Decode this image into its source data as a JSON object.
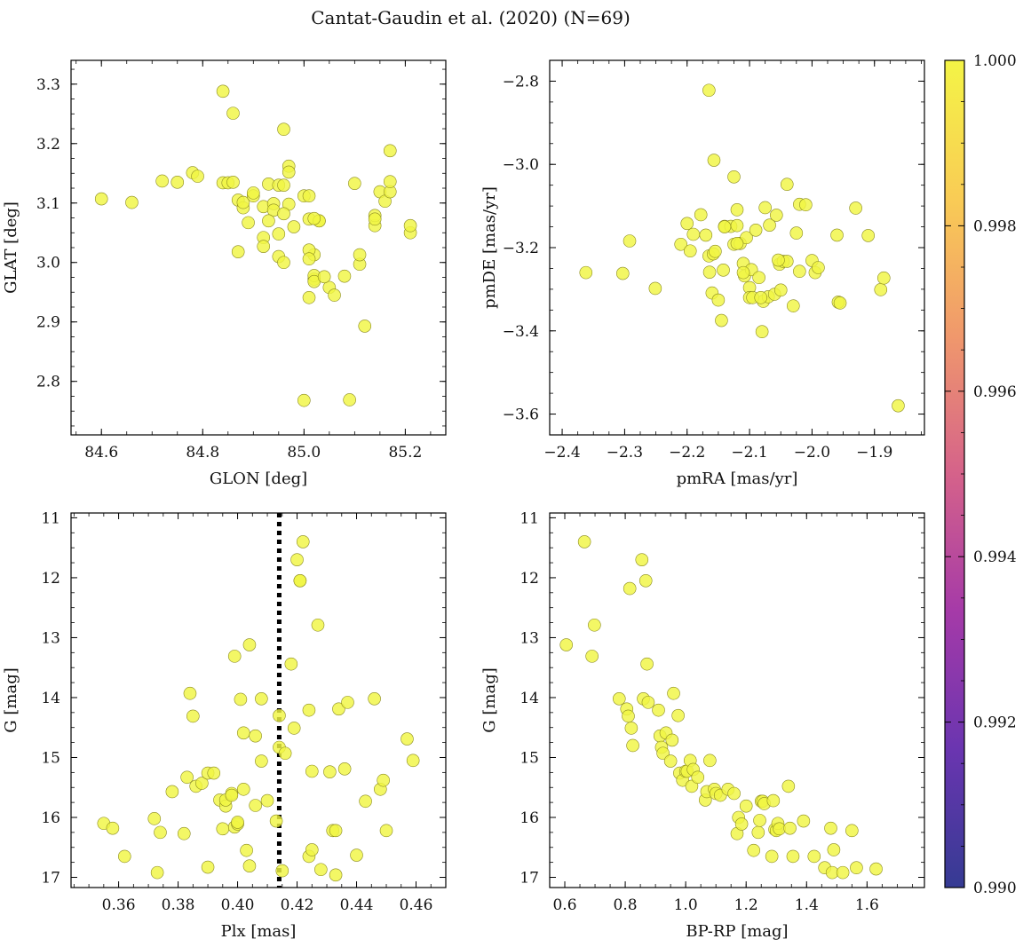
{
  "figure": {
    "title": "Cantat-Gaudin et al. (2020) (N=69)",
    "marker_color": "#f0f543",
    "marker_edge": "#8a8a20"
  },
  "colorbar": {
    "min": 0.99,
    "max": 1.0,
    "ticks": [
      "0.990",
      "0.992",
      "0.994",
      "0.996",
      "0.998",
      "1.000"
    ],
    "colormap": "plasma",
    "stops": [
      "#353b93",
      "#6a35b0",
      "#a53aa8",
      "#d5628a",
      "#f0986c",
      "#f9cc55",
      "#f4f446"
    ]
  },
  "chart_data": [
    {
      "type": "scatter",
      "title": "",
      "xlabel": "GLON [deg]",
      "ylabel": "GLAT [deg]",
      "xlim": [
        84.54,
        85.28
      ],
      "ylim": [
        2.71,
        3.34
      ],
      "xticks": [
        84.6,
        84.8,
        85.0,
        85.2
      ],
      "xticklabels": [
        "84.6",
        "84.8",
        "85.0",
        "85.2"
      ],
      "yticks": [
        2.8,
        2.9,
        3.0,
        3.1,
        3.2,
        3.3
      ],
      "yticklabels": [
        "2.8",
        "2.9",
        "3.0",
        "3.1",
        "3.2",
        "3.3"
      ],
      "x": [
        84.6,
        84.66,
        84.72,
        84.75,
        84.78,
        84.79,
        84.84,
        84.85,
        84.86,
        84.87,
        84.88,
        84.88,
        84.9,
        84.9,
        84.92,
        84.93,
        84.94,
        84.94,
        84.95,
        84.95,
        84.96,
        84.96,
        84.97,
        84.97,
        84.97,
        84.98,
        85.0,
        85.01,
        85.01,
        85.02,
        85.02,
        85.03,
        85.03,
        85.05,
        85.06,
        85.08,
        85.1,
        85.11,
        85.12,
        85.14,
        85.14,
        85.15,
        85.16,
        85.17,
        85.17,
        85.17,
        85.21,
        85.21,
        84.84,
        84.86,
        84.87,
        84.89,
        84.92,
        84.92,
        84.93,
        84.95,
        85.01,
        85.02,
        85.01,
        85.02,
        85.04,
        85.0,
        85.09,
        85.11,
        85.14,
        84.96,
        84.96,
        85.01,
        85.02
      ],
      "y": [
        3.107,
        3.101,
        3.137,
        3.135,
        3.151,
        3.145,
        3.134,
        3.134,
        3.135,
        3.105,
        3.092,
        3.101,
        3.112,
        3.117,
        3.094,
        3.132,
        3.099,
        3.088,
        3.13,
        3.01,
        3.224,
        3.13,
        3.162,
        3.152,
        3.098,
        3.06,
        3.112,
        3.112,
        3.073,
        2.972,
        3.013,
        3.07,
        3.07,
        2.958,
        2.945,
        2.977,
        3.133,
        2.997,
        2.893,
        3.062,
        3.079,
        3.119,
        3.103,
        3.119,
        3.188,
        3.136,
        3.05,
        3.062,
        3.288,
        3.251,
        3.018,
        3.067,
        3.042,
        3.027,
        3.07,
        3.048,
        3.021,
        2.978,
        2.941,
        2.968,
        2.976,
        2.768,
        2.769,
        3.013,
        3.073,
        3.0,
        3.082,
        3.006,
        3.074
      ],
      "marker_colors": [
        "yellow"
      ]
    },
    {
      "type": "scatter",
      "title": "",
      "xlabel": "pmRA [mas/yr]",
      "ylabel": "pmDE [mas/yr]",
      "xlim": [
        -2.42,
        -1.82
      ],
      "ylim": [
        -3.65,
        -2.75
      ],
      "xticks": [
        -2.4,
        -2.3,
        -2.2,
        -2.1,
        -2.0,
        -1.9
      ],
      "xticklabels": [
        "−2.4",
        "−2.3",
        "−2.2",
        "−2.1",
        "−2.0",
        "−1.9"
      ],
      "yticks": [
        -3.6,
        -3.4,
        -3.2,
        -3.0,
        -2.8
      ],
      "yticklabels": [
        "−3.6",
        "−3.4",
        "−3.2",
        "−3.0",
        "−2.8"
      ],
      "x": [
        -2.165,
        -2.157,
        -2.125,
        -2.04,
        -2.02,
        -2.362,
        -2.303,
        -2.292,
        -2.251,
        -2.21,
        -2.2,
        -2.195,
        -2.19,
        -2.178,
        -2.17,
        -2.165,
        -2.164,
        -2.16,
        -2.158,
        -2.155,
        -2.15,
        -2.145,
        -2.142,
        -2.14,
        -2.13,
        -2.125,
        -2.12,
        -2.12,
        -2.115,
        -2.11,
        -2.108,
        -2.105,
        -2.1,
        -2.1,
        -2.097,
        -2.09,
        -2.085,
        -2.08,
        -2.078,
        -2.075,
        -2.07,
        -2.068,
        -2.06,
        -2.057,
        -2.052,
        -2.05,
        -2.046,
        -2.04,
        -2.03,
        -2.025,
        -2.02,
        -2.01,
        -2.0,
        -1.995,
        -1.99,
        -1.96,
        -1.958,
        -1.955,
        -1.93,
        -1.91,
        -1.89,
        -1.885,
        -1.862,
        -2.12,
        -2.11,
        -2.095,
        -2.14,
        -2.082,
        -2.054
      ],
      "y": [
        -2.822,
        -2.99,
        -3.03,
        -3.048,
        -3.096,
        -3.26,
        -3.262,
        -3.184,
        -3.298,
        -3.192,
        -3.142,
        -3.208,
        -3.168,
        -3.121,
        -3.17,
        -3.22,
        -3.259,
        -3.309,
        -3.215,
        -3.209,
        -3.326,
        -3.375,
        -3.254,
        -3.149,
        -3.149,
        -3.192,
        -3.147,
        -3.109,
        -3.19,
        -3.238,
        -3.268,
        -3.176,
        -3.296,
        -3.32,
        -3.253,
        -3.158,
        -3.272,
        -3.402,
        -3.329,
        -3.104,
        -3.318,
        -3.146,
        -3.312,
        -3.122,
        -3.24,
        -3.302,
        -3.233,
        -3.233,
        -3.34,
        -3.165,
        -3.257,
        -3.097,
        -3.231,
        -3.26,
        -3.248,
        -3.17,
        -3.331,
        -3.333,
        -3.105,
        -3.171,
        -3.301,
        -3.273,
        -3.58,
        -3.19,
        -3.26,
        -3.32,
        -3.15,
        -3.32,
        -3.23
      ]
    },
    {
      "type": "scatter",
      "title": "",
      "xlabel": "Plx [mas]",
      "ylabel": "G [mag]",
      "xlim": [
        0.344,
        0.47
      ],
      "ylim": [
        17.17,
        10.92
      ],
      "y_inverted": true,
      "xticks": [
        0.36,
        0.38,
        0.4,
        0.42,
        0.44,
        0.46
      ],
      "xticklabels": [
        "0.36",
        "0.38",
        "0.40",
        "0.42",
        "0.44",
        "0.46"
      ],
      "yticks": [
        11,
        12,
        13,
        14,
        15,
        16,
        17
      ],
      "yticklabels": [
        "11",
        "12",
        "13",
        "14",
        "15",
        "16",
        "17"
      ],
      "reference_line": {
        "x": 0.414,
        "style": "dotted",
        "color": "#000000"
      },
      "x": [
        0.355,
        0.358,
        0.362,
        0.372,
        0.373,
        0.374,
        0.378,
        0.382,
        0.383,
        0.384,
        0.385,
        0.386,
        0.388,
        0.39,
        0.39,
        0.392,
        0.394,
        0.395,
        0.396,
        0.396,
        0.398,
        0.398,
        0.399,
        0.399,
        0.4,
        0.4,
        0.401,
        0.402,
        0.402,
        0.403,
        0.404,
        0.404,
        0.406,
        0.406,
        0.408,
        0.408,
        0.41,
        0.413,
        0.414,
        0.414,
        0.415,
        0.416,
        0.418,
        0.419,
        0.42,
        0.421,
        0.421,
        0.422,
        0.424,
        0.424,
        0.425,
        0.425,
        0.427,
        0.428,
        0.431,
        0.432,
        0.433,
        0.433,
        0.434,
        0.436,
        0.437,
        0.44,
        0.443,
        0.446,
        0.448,
        0.449,
        0.45,
        0.457,
        0.459
      ],
      "y": [
        16.1,
        16.18,
        16.65,
        16.02,
        16.92,
        16.25,
        15.57,
        16.27,
        15.33,
        13.93,
        14.31,
        15.48,
        15.43,
        16.83,
        15.26,
        15.26,
        15.71,
        16.19,
        15.81,
        15.71,
        15.6,
        15.63,
        16.16,
        13.31,
        16.11,
        16.08,
        14.03,
        15.53,
        14.59,
        16.55,
        13.12,
        16.81,
        15.8,
        14.64,
        15.06,
        14.02,
        15.72,
        16.06,
        14.3,
        14.83,
        16.89,
        14.93,
        13.44,
        14.51,
        11.7,
        12.05,
        12.05,
        11.4,
        16.65,
        14.21,
        15.23,
        16.54,
        12.79,
        16.87,
        15.24,
        16.22,
        16.22,
        16.96,
        14.19,
        15.19,
        14.08,
        16.63,
        15.73,
        14.02,
        15.53,
        15.38,
        16.22,
        14.69,
        15.05
      ]
    },
    {
      "type": "scatter",
      "title": "",
      "xlabel": "BP-RP [mag]",
      "ylabel": "G [mag]",
      "xlim": [
        0.55,
        1.79
      ],
      "ylim": [
        17.17,
        10.92
      ],
      "y_inverted": true,
      "xticks": [
        0.6,
        0.8,
        1.0,
        1.2,
        1.4,
        1.6
      ],
      "xticklabels": [
        "0.6",
        "0.8",
        "1.0",
        "1.2",
        "1.4",
        "1.6"
      ],
      "yticks": [
        11,
        12,
        13,
        14,
        15,
        16,
        17
      ],
      "yticklabels": [
        "11",
        "12",
        "13",
        "14",
        "15",
        "16",
        "17"
      ],
      "x": [
        0.605,
        0.665,
        0.69,
        0.698,
        0.78,
        0.805,
        0.81,
        0.815,
        0.82,
        0.825,
        0.855,
        0.86,
        0.868,
        0.872,
        0.876,
        0.91,
        0.915,
        0.92,
        0.925,
        0.935,
        0.95,
        0.955,
        0.96,
        0.975,
        0.98,
        0.99,
        1.0,
        1.005,
        1.015,
        1.02,
        1.025,
        1.04,
        1.065,
        1.07,
        1.08,
        1.095,
        1.1,
        1.115,
        1.14,
        1.16,
        1.17,
        1.175,
        1.185,
        1.2,
        1.225,
        1.24,
        1.245,
        1.25,
        1.255,
        1.26,
        1.285,
        1.29,
        1.295,
        1.3,
        1.305,
        1.31,
        1.34,
        1.345,
        1.355,
        1.39,
        1.425,
        1.46,
        1.48,
        1.485,
        1.49,
        1.52,
        1.55,
        1.565,
        1.63
      ],
      "y": [
        13.12,
        11.4,
        13.31,
        12.79,
        14.02,
        14.19,
        14.31,
        12.18,
        14.51,
        14.8,
        11.7,
        14.02,
        12.05,
        13.44,
        14.08,
        14.21,
        14.64,
        14.83,
        14.93,
        14.59,
        15.06,
        14.71,
        13.93,
        14.3,
        15.26,
        15.38,
        15.23,
        15.23,
        15.05,
        15.48,
        15.2,
        15.33,
        15.71,
        15.57,
        15.05,
        15.53,
        15.6,
        15.63,
        15.53,
        15.6,
        16.27,
        16.0,
        16.11,
        15.81,
        16.55,
        16.25,
        16.05,
        15.73,
        15.73,
        15.77,
        16.65,
        15.72,
        16.2,
        16.22,
        16.1,
        16.19,
        15.48,
        16.18,
        16.65,
        16.06,
        16.65,
        16.84,
        16.18,
        16.92,
        16.54,
        16.92,
        16.22,
        16.84,
        16.86
      ]
    }
  ]
}
